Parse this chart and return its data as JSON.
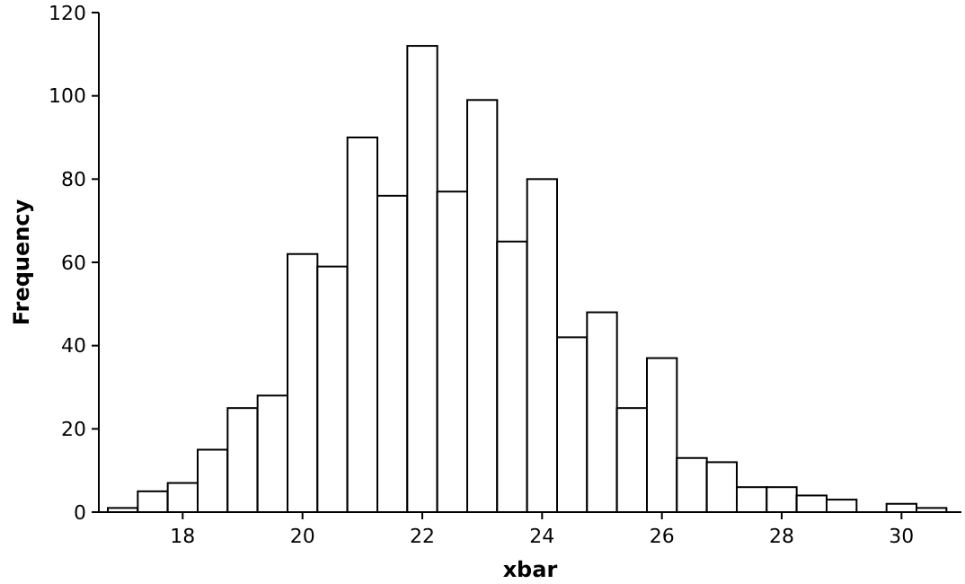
{
  "chart_data": {
    "type": "histogram",
    "xlabel": "xbar",
    "ylabel": "Frequency",
    "bins": [
      16.75,
      17.25,
      17.75,
      18.25,
      18.75,
      19.25,
      19.75,
      20.25,
      20.75,
      21.25,
      21.75,
      22.25,
      22.75,
      23.25,
      23.75,
      24.25,
      24.75,
      25.25,
      25.75,
      26.25,
      26.75,
      27.25,
      27.75,
      28.25,
      28.75,
      29.25,
      29.75,
      30.25,
      30.75
    ],
    "values": [
      1,
      5,
      7,
      15,
      25,
      28,
      62,
      59,
      90,
      76,
      112,
      77,
      99,
      65,
      80,
      42,
      48,
      25,
      37,
      13,
      12,
      6,
      6,
      4,
      3,
      0,
      2,
      1
    ],
    "color": "#ffffff",
    "xlim": [
      16.6,
      31
    ],
    "xticks": [
      18,
      20,
      22,
      24,
      26,
      28,
      30
    ],
    "ylim": [
      0,
      120
    ],
    "yticks": [
      0,
      20,
      40,
      60,
      80,
      100,
      120
    ]
  }
}
